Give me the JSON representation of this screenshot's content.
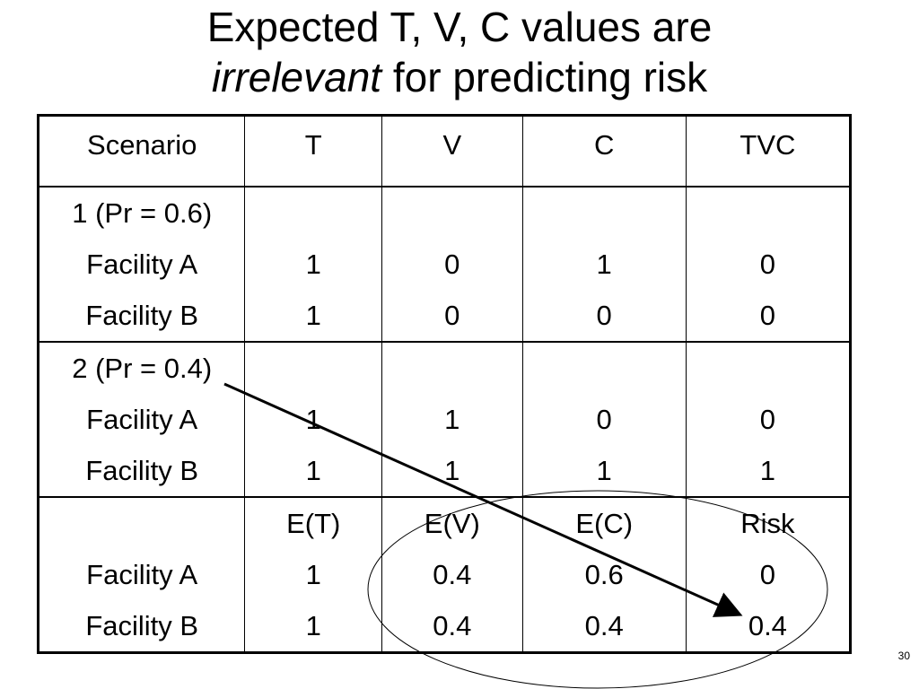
{
  "title": {
    "line1": "Expected T, V, C values are",
    "line2_emphasis": "irrelevant",
    "line2_rest": " for predicting risk"
  },
  "table": {
    "headers": [
      "Scenario",
      "T",
      "V",
      "C",
      "TVC"
    ],
    "scenario1": {
      "label": "1 (Pr = 0.6)",
      "rows": [
        [
          "Facility A",
          "1",
          "0",
          "1",
          "0"
        ],
        [
          "Facility B",
          "1",
          "0",
          "0",
          "0"
        ]
      ]
    },
    "scenario2": {
      "label": "2 (Pr = 0.4)",
      "rows": [
        [
          "Facility A",
          "1",
          "1",
          "0",
          "0"
        ],
        [
          "Facility B",
          "1",
          "1",
          "1",
          "1"
        ]
      ]
    },
    "expected": {
      "headers": [
        "",
        "E(T)",
        "E(V)",
        "E(C)",
        "Risk"
      ],
      "rows": [
        [
          "Facility A",
          "1",
          "0.4",
          "0.6",
          "0"
        ],
        [
          "Facility B",
          "1",
          "0.4",
          "0.4",
          "0.4"
        ]
      ]
    }
  },
  "page_number": "30"
}
